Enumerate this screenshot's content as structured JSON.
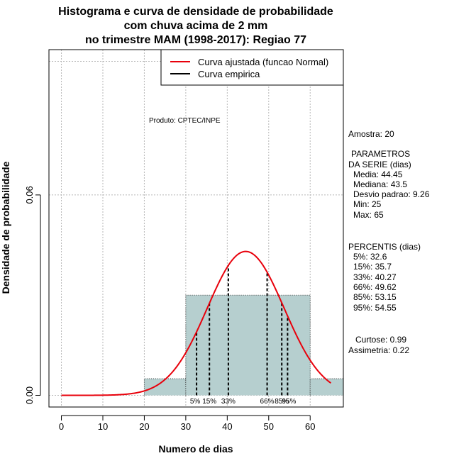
{
  "chart_data": {
    "type": "histogram",
    "title": [
      "Histograma e curva de densidade de probabilidade",
      "com chuva acima de 2 mm",
      "no trimestre MAM (1998-2017): Regiao 77"
    ],
    "xlabel": "Numero de dias",
    "ylabel": "Densidade de probabilidade",
    "xlim": [
      -3,
      68
    ],
    "ylim": [
      -0.0035,
      0.1035
    ],
    "x_ticks": [
      0,
      10,
      20,
      30,
      40,
      50,
      60
    ],
    "y_ticks": [
      0.0,
      0.06
    ],
    "y_tick_labels": [
      "0.00",
      "0.06"
    ],
    "grid_x": [
      0,
      10,
      20,
      30,
      40,
      50,
      60
    ],
    "grid_y": [
      0.0,
      0.06,
      0.1
    ],
    "bins": [
      {
        "from": 20,
        "to": 30,
        "density": 0.005
      },
      {
        "from": 30,
        "to": 60,
        "density": 0.03
      },
      {
        "from": 60,
        "to": 70,
        "density": 0.005
      }
    ],
    "bar_color": "#b6cfcf",
    "curve_color": "#e8000b",
    "normal_fit": {
      "mean": 44.45,
      "sd": 9.26,
      "x_from": 0,
      "x_to": 65
    },
    "percentile_lines": [
      {
        "label": "5%",
        "x": 32.6
      },
      {
        "label": "15%",
        "x": 35.7
      },
      {
        "label": "33%",
        "x": 40.27
      },
      {
        "label": "66%",
        "x": 49.62
      },
      {
        "label": "85%",
        "x": 53.15
      },
      {
        "label": "95%",
        "x": 54.55
      }
    ],
    "legend": {
      "position": "top-right",
      "entries": [
        {
          "label": "Curva ajustada (funcao Normal)",
          "color": "#e8000b"
        },
        {
          "label": "Curva empirica",
          "color": "#000000"
        }
      ]
    }
  },
  "annotations": {
    "produto": "Produto: CPTEC/INPE",
    "amostra": "Amostra: 20",
    "parametros_header": [
      "PARAMETROS",
      "DA SERIE (dias)"
    ],
    "parametros": [
      "Media: 44.45",
      "Mediana: 43.5",
      "Desvio padrao: 9.26",
      "Min: 25",
      "Max: 65"
    ],
    "percentis_header": "PERCENTIS (dias)",
    "percentis": [
      "5%: 32.6",
      "15%: 35.7",
      "33%: 40.27",
      "66%: 49.62",
      "85%: 53.15",
      "95%: 54.55"
    ],
    "curtose": "Curtose: 0.99",
    "assimetria": "Assimetria: 0.22"
  }
}
